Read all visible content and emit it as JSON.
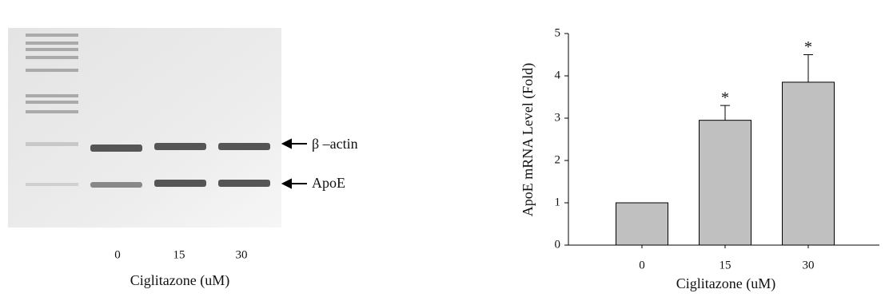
{
  "gel": {
    "markers": [
      "β –actin",
      "ApoE"
    ],
    "lanes": [
      "0",
      "15",
      "30"
    ],
    "xlabel": "Ciglitazone (uM)"
  },
  "chart_data": {
    "type": "bar",
    "categories": [
      "0",
      "15",
      "30"
    ],
    "values": [
      1,
      2.95,
      3.85
    ],
    "errors": [
      null,
      0.35,
      0.65
    ],
    "annotations": [
      null,
      "*",
      "*"
    ],
    "color": "#c0c0c0",
    "xlabel": "Ciglitazone (uM)",
    "ylabel": "ApoE mRNA Level (Fold)",
    "ylim": [
      0,
      5
    ],
    "yticks": [
      0,
      1,
      2,
      3,
      4,
      5
    ]
  }
}
